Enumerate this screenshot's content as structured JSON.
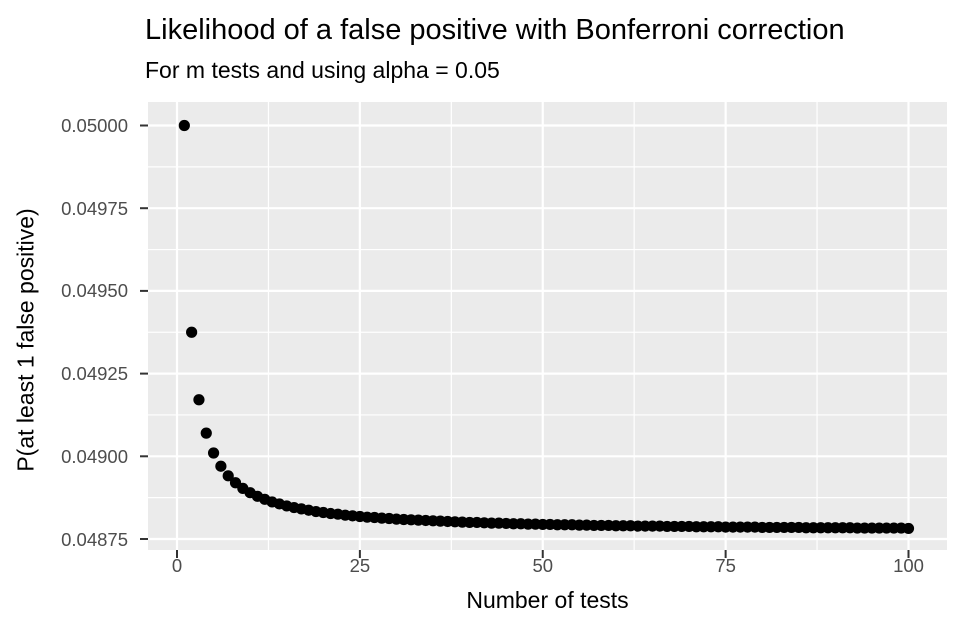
{
  "title": "Likelihood of a false positive with Bonferroni correction",
  "subtitle": "For m tests and using alpha = 0.05",
  "axes": {
    "x": {
      "title": "Number of tests",
      "tick_labels": [
        "0",
        "25",
        "50",
        "75",
        "100"
      ]
    },
    "y": {
      "title": "P(at least 1 false positive)",
      "tick_labels": [
        "0.05000",
        "0.04975",
        "0.04950",
        "0.04925",
        "0.04900",
        "0.04875"
      ]
    }
  },
  "colors": {
    "background": "#ffffff",
    "panel_background": "#ebebeb",
    "grid": "#ffffff",
    "tick_mark": "#333333",
    "tick_label": "#4d4d4d",
    "text": "#000000",
    "point": "#000000"
  },
  "chart_data": {
    "type": "scatter",
    "title": "Likelihood of a false positive with Bonferroni correction",
    "subtitle": "For m tests and using alpha = 0.05",
    "xlabel": "Number of tests",
    "ylabel": "P(at least 1 false positive)",
    "grid": "major and minor, white on gray panel",
    "legend": "none",
    "x_ticks": [
      0,
      25,
      50,
      75,
      100
    ],
    "y_ticks": [
      0.05,
      0.04975,
      0.0495,
      0.04925,
      0.049,
      0.04875
    ],
    "xlim": [
      -4,
      105
    ],
    "ylim": [
      0.048722,
      0.050061
    ],
    "point_color": "#000000",
    "x": [
      1,
      2,
      3,
      4,
      5,
      6,
      7,
      8,
      9,
      10,
      11,
      12,
      13,
      14,
      15,
      16,
      17,
      18,
      19,
      20,
      21,
      22,
      23,
      24,
      25,
      26,
      27,
      28,
      29,
      30,
      31,
      32,
      33,
      34,
      35,
      36,
      37,
      38,
      39,
      40,
      41,
      42,
      43,
      44,
      45,
      46,
      47,
      48,
      49,
      50,
      51,
      52,
      53,
      54,
      55,
      56,
      57,
      58,
      59,
      60,
      61,
      62,
      63,
      64,
      65,
      66,
      67,
      68,
      69,
      70,
      71,
      72,
      73,
      74,
      75,
      76,
      77,
      78,
      79,
      80,
      81,
      82,
      83,
      84,
      85,
      86,
      87,
      88,
      89,
      90,
      91,
      92,
      93,
      94,
      95,
      96,
      97,
      98,
      99,
      100
    ],
    "y": [
      0.05,
      0.049375,
      0.049171,
      0.04907,
      0.04901,
      0.04897,
      0.048941,
      0.04892,
      0.048903,
      0.04889,
      0.048879,
      0.04887,
      0.048862,
      0.048856,
      0.04885,
      0.048845,
      0.048841,
      0.048837,
      0.048833,
      0.04883,
      0.048827,
      0.048825,
      0.048822,
      0.04882,
      0.048818,
      0.048816,
      0.048815,
      0.048813,
      0.048812,
      0.04881,
      0.048809,
      0.048808,
      0.048807,
      0.048806,
      0.048805,
      0.048804,
      0.048803,
      0.048802,
      0.048801,
      0.0488,
      0.0488,
      0.048799,
      0.048798,
      0.048798,
      0.048797,
      0.048796,
      0.048796,
      0.048795,
      0.048795,
      0.048794,
      0.048794,
      0.048793,
      0.048793,
      0.048793,
      0.048792,
      0.048792,
      0.048791,
      0.048791,
      0.048791,
      0.04879,
      0.04879,
      0.04879,
      0.048789,
      0.048789,
      0.048789,
      0.048789,
      0.048788,
      0.048788,
      0.048788,
      0.048788,
      0.048787,
      0.048787,
      0.048787,
      0.048787,
      0.048786,
      0.048786,
      0.048786,
      0.048786,
      0.048786,
      0.048785,
      0.048785,
      0.048785,
      0.048785,
      0.048785,
      0.048785,
      0.048784,
      0.048784,
      0.048784,
      0.048784,
      0.048784,
      0.048784,
      0.048784,
      0.048783,
      0.048783,
      0.048783,
      0.048783,
      0.048783,
      0.048783,
      0.048783,
      0.048782
    ]
  }
}
